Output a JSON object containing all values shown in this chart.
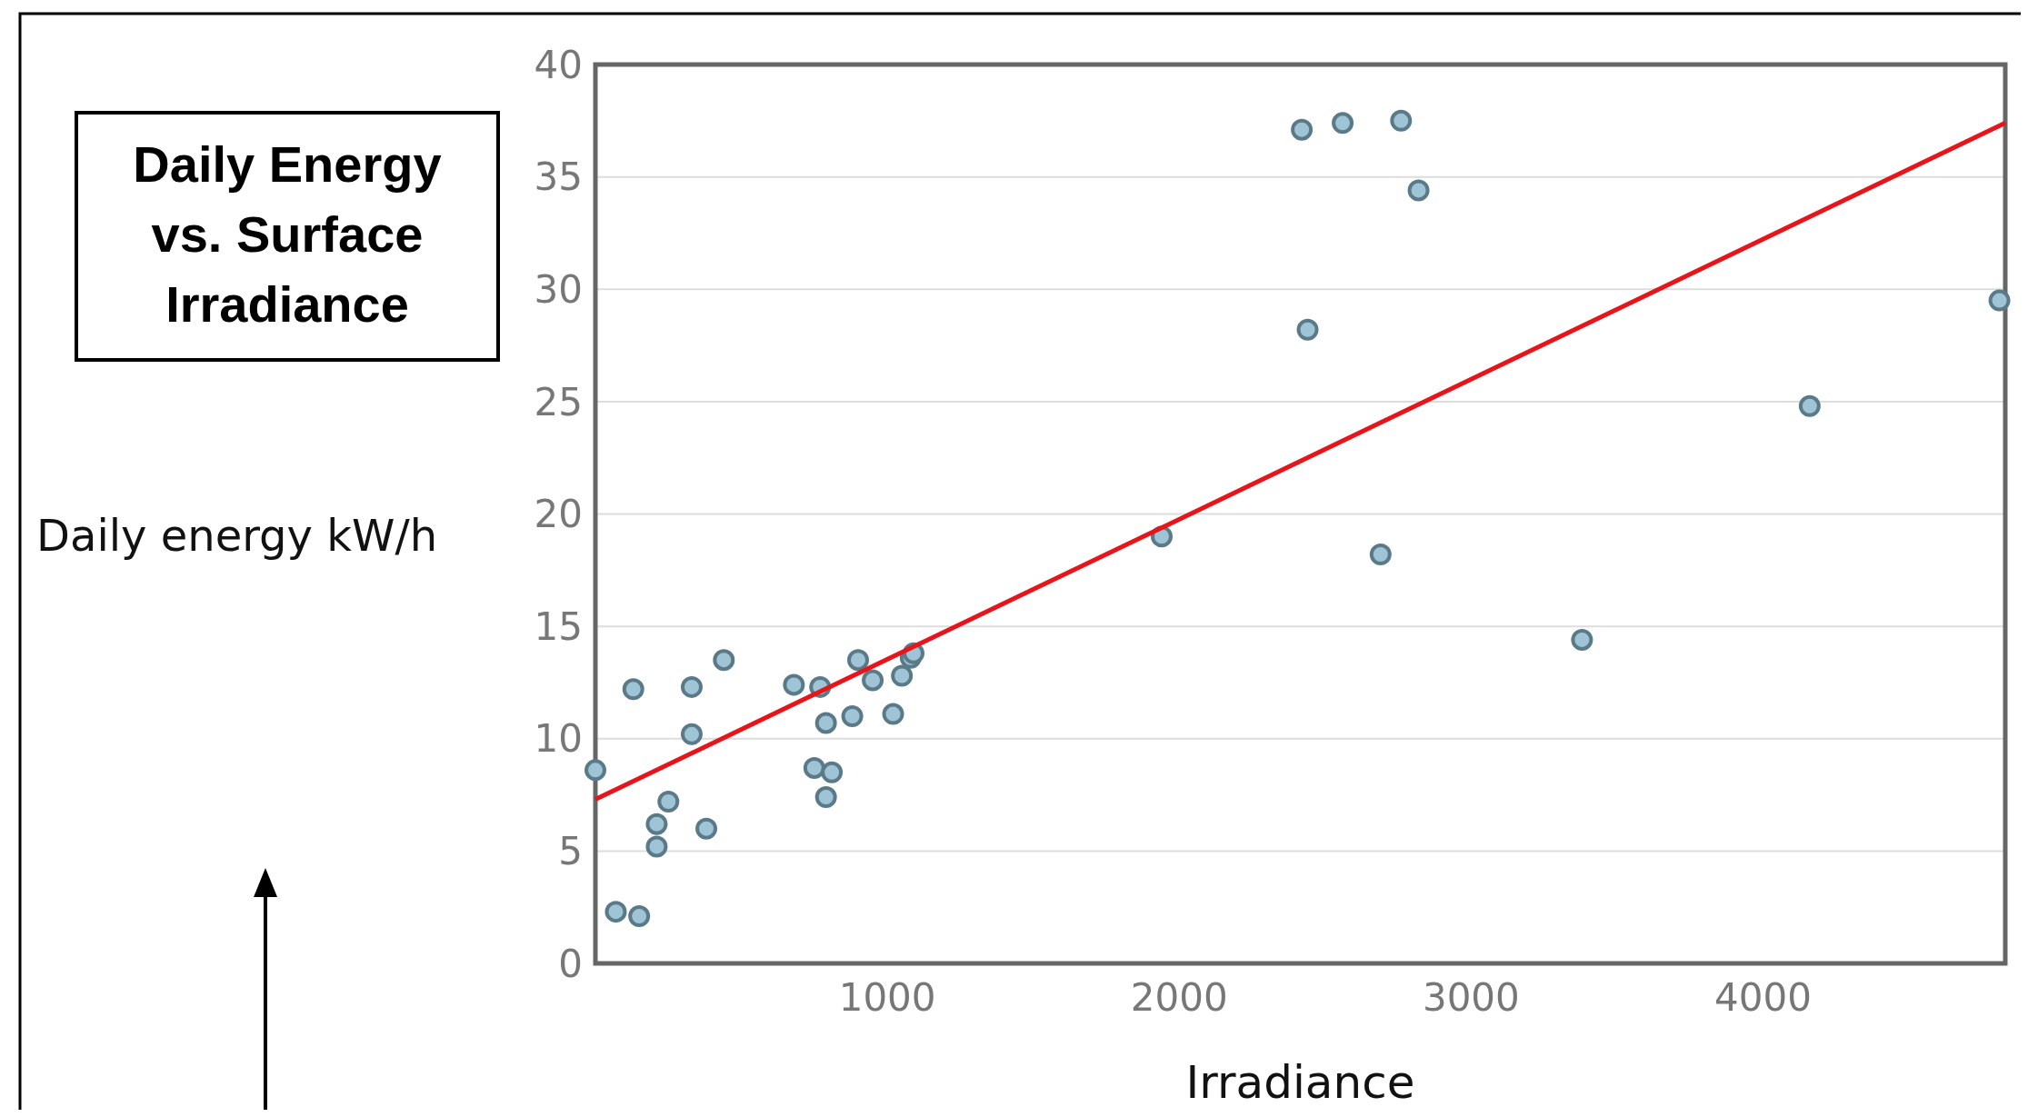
{
  "chart_data": {
    "type": "scatter",
    "title": "Daily Energy vs. Surface Irradiance",
    "xlabel": "Irradiance",
    "ylabel": "Daily energy kW/h",
    "xlim": [
      0,
      4830
    ],
    "xticks": [
      1000,
      2000,
      3000,
      4000
    ],
    "ylim": [
      0,
      40
    ],
    "yticks": [
      0,
      5,
      10,
      15,
      20,
      25,
      30,
      35,
      40
    ],
    "grid": "y",
    "series": [
      {
        "marker": "circle",
        "color": "#9fc4d6",
        "x": [
          0,
          70,
          130,
          150,
          210,
          210,
          250,
          330,
          330,
          380,
          440,
          680,
          750,
          770,
          790,
          790,
          810,
          880,
          900,
          950,
          1020,
          1050,
          1080,
          1090,
          1940,
          2420,
          2440,
          2560,
          2690,
          2760,
          2820,
          3380,
          4160,
          4810
        ],
        "values": [
          8.6,
          2.3,
          12.2,
          2.1,
          6.2,
          5.2,
          7.2,
          12.3,
          10.2,
          6.0,
          13.5,
          12.4,
          8.7,
          12.3,
          10.7,
          7.4,
          8.5,
          11.0,
          13.5,
          12.6,
          11.1,
          12.8,
          13.6,
          13.8,
          19.0,
          37.1,
          28.2,
          37.4,
          18.2,
          37.5,
          34.4,
          14.4,
          24.8,
          29.5
        ]
      },
      {
        "type": "line",
        "color": "#e8141a",
        "x": [
          0,
          4830
        ],
        "values": [
          7.3,
          37.4
        ]
      }
    ]
  }
}
